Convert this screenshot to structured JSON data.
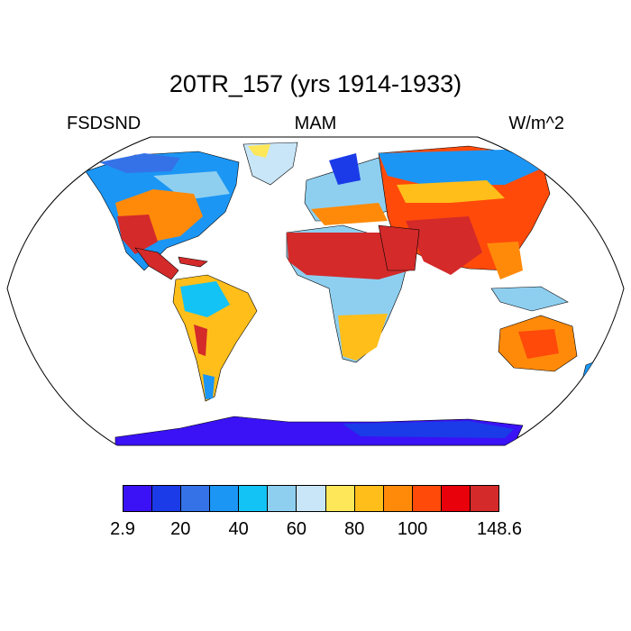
{
  "title": "20TR_157 (yrs 1914-1933)",
  "variable": "FSDSND",
  "season": "MAM",
  "units": "W/m^2",
  "colorbar": {
    "colors": [
      "#3a12f5",
      "#1b3be8",
      "#3572e8",
      "#1b96f5",
      "#14c3f5",
      "#8ecff0",
      "#c8e6f8",
      "#ffe75a",
      "#ffbe1a",
      "#ff8a0a",
      "#ff4a0a",
      "#e8000a",
      "#d42a2a"
    ],
    "tick_labels": [
      "2.9",
      "20",
      "40",
      "60",
      "80",
      "100",
      "148.6"
    ]
  },
  "map": {
    "projection": "Robinson",
    "land_outline": "#000000"
  }
}
